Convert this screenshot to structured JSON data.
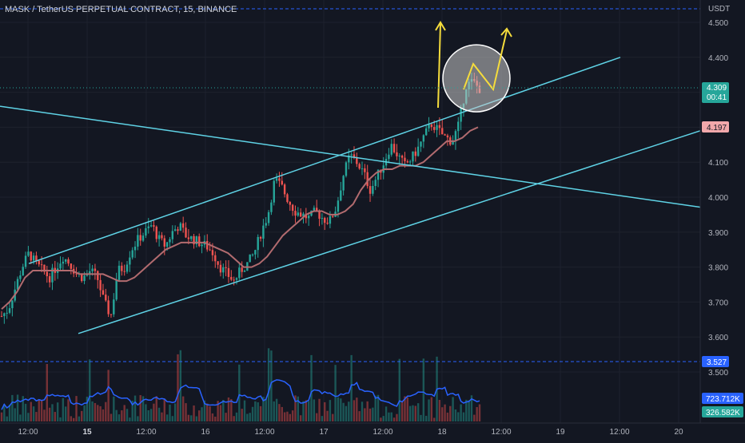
{
  "header": {
    "symbol_title": "MASK / TetherUS PERPETUAL CONTRACT, 15, BINANCE"
  },
  "colors": {
    "background": "#131722",
    "grid": "#1e222d",
    "up": "#26a69a",
    "down": "#ef5350",
    "trendline": "#5fd3e6",
    "ma": "#b26b6f",
    "volume_ma": "#2962ff",
    "arrow": "#f5dc3c",
    "axis_text": "#b2b5be",
    "dashed_line": "#2962ff"
  },
  "chart_data": {
    "type": "candlestick",
    "price_axis": {
      "currency": "USDT",
      "ticks": [
        "4.500",
        "4.400",
        "4.300",
        "4.200",
        "4.100",
        "4.000",
        "3.900",
        "3.800",
        "3.700",
        "3.600",
        "3.500"
      ],
      "tick_values": [
        4.5,
        4.4,
        4.3,
        4.2,
        4.1,
        4.0,
        3.9,
        3.8,
        3.7,
        3.6,
        3.5
      ]
    },
    "time_axis": {
      "ticks": [
        "12:00",
        "15",
        "12:00",
        "16",
        "12:00",
        "17",
        "12:00",
        "18",
        "12:00",
        "19",
        "12:00",
        "20"
      ],
      "bold": [
        false,
        true,
        false,
        false,
        false,
        false,
        false,
        false,
        false,
        false,
        false,
        false
      ]
    },
    "price_labels": {
      "last_price": "4.309",
      "countdown": "00:41",
      "ma_value": "4.197",
      "lower_dashed": "3.527",
      "volume_ma": "723.712K",
      "volume": "326.582K"
    },
    "close_series": [
      3.66,
      3.68,
      3.74,
      3.8,
      3.84,
      3.81,
      3.79,
      3.77,
      3.8,
      3.83,
      3.81,
      3.78,
      3.77,
      3.79,
      3.77,
      3.7,
      3.66,
      3.79,
      3.8,
      3.85,
      3.88,
      3.9,
      3.92,
      3.88,
      3.86,
      3.9,
      3.92,
      3.89,
      3.88,
      3.87,
      3.86,
      3.84,
      3.8,
      3.78,
      3.76,
      3.79,
      3.81,
      3.84,
      3.9,
      3.95,
      4.05,
      4.03,
      3.99,
      3.96,
      3.95,
      3.94,
      3.96,
      3.94,
      3.93,
      3.97,
      4.06,
      4.12,
      4.1,
      4.07,
      4.02,
      4.06,
      4.1,
      4.15,
      4.12,
      4.09,
      4.11,
      4.14,
      4.18,
      4.21,
      4.19,
      4.17,
      4.16,
      4.21,
      4.32,
      4.33,
      4.31
    ],
    "ma_series": [
      3.68,
      3.7,
      3.73,
      3.77,
      3.79,
      3.79,
      3.79,
      3.79,
      3.79,
      3.79,
      3.78,
      3.78,
      3.78,
      3.78,
      3.77,
      3.76,
      3.76,
      3.77,
      3.79,
      3.81,
      3.83,
      3.85,
      3.86,
      3.87,
      3.87,
      3.87,
      3.87,
      3.86,
      3.85,
      3.84,
      3.82,
      3.8,
      3.8,
      3.81,
      3.83,
      3.86,
      3.89,
      3.91,
      3.93,
      3.95,
      3.96,
      3.96,
      3.95,
      3.95,
      3.96,
      3.98,
      4.02,
      4.05,
      4.07,
      4.08,
      4.08,
      4.09,
      4.09,
      4.09,
      4.1,
      4.12,
      4.14,
      4.16,
      4.16,
      4.17,
      4.19,
      4.2
    ],
    "annotations": {
      "upper_channel": [
        [
          0.0,
          3.81
        ],
        [
          1.0,
          4.4
        ]
      ],
      "lower_channel": [
        [
          0.0,
          3.61
        ],
        [
          1.0,
          4.19
        ]
      ],
      "descending_line": [
        [
          0.0,
          4.26
        ],
        [
          1.0,
          3.97
        ]
      ],
      "highlight_circle_center_price": 4.34
    }
  }
}
